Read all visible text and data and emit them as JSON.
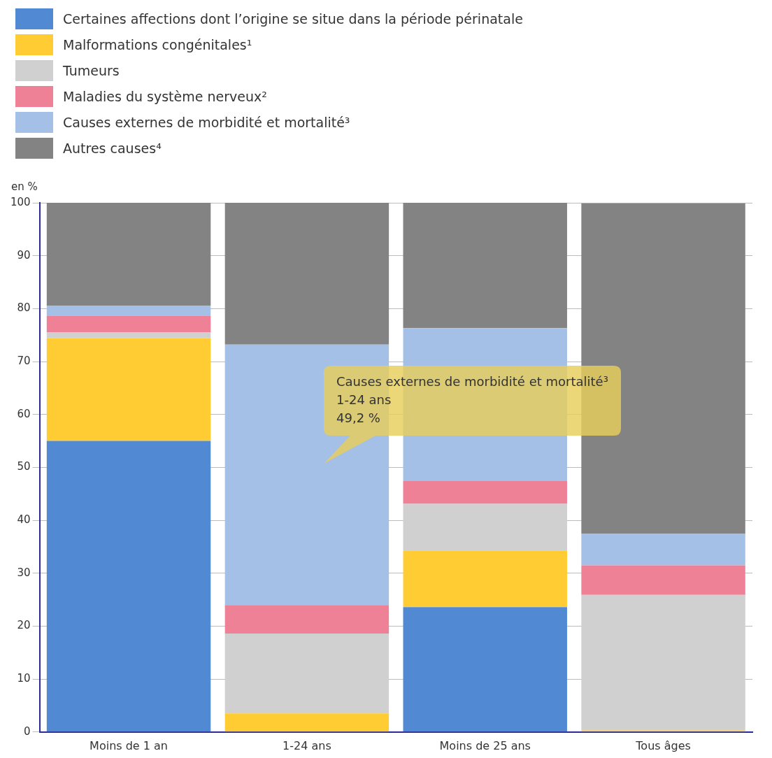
{
  "chart_data": {
    "type": "bar",
    "stacked": true,
    "ylabel": "en %",
    "categories": [
      "Moins de 1 an",
      "1-24 ans",
      "Moins de 25 ans",
      "Tous âges"
    ],
    "series": [
      {
        "name": "Certaines affections dont l’origine se situe dans la période périnatale",
        "color": "#5189d3",
        "values": [
          55.0,
          0,
          23.6,
          null
        ]
      },
      {
        "name": "Malformations congénitales¹",
        "color": "#ffcd33",
        "values": [
          19.4,
          3.5,
          10.7,
          0.3
        ]
      },
      {
        "name": "Tumeurs",
        "color": "#d0d0d0",
        "values": [
          1.1,
          15.1,
          8.8,
          25.6
        ]
      },
      {
        "name": "Maladies du système nerveux²",
        "color": "#ef8197",
        "values": [
          3.1,
          5.4,
          4.3,
          5.6
        ]
      },
      {
        "name": "Causes externes de morbidité et mortalité³",
        "color": "#a4c0e6",
        "values": [
          1.9,
          49.2,
          28.9,
          6.0
        ]
      },
      {
        "name": "Autres causes⁴",
        "color": "#838383",
        "values": [
          19.5,
          26.8,
          23.7,
          62.4
        ]
      }
    ],
    "ylim": [
      0,
      100
    ],
    "yticks": [
      0,
      10,
      20,
      30,
      40,
      50,
      60,
      70,
      80,
      90,
      100
    ],
    "grid": "y",
    "legend": "top left",
    "annotations": [
      "Causes externes de morbidité et mortalité³\n1-24 ans\n49,2 %"
    ]
  }
}
